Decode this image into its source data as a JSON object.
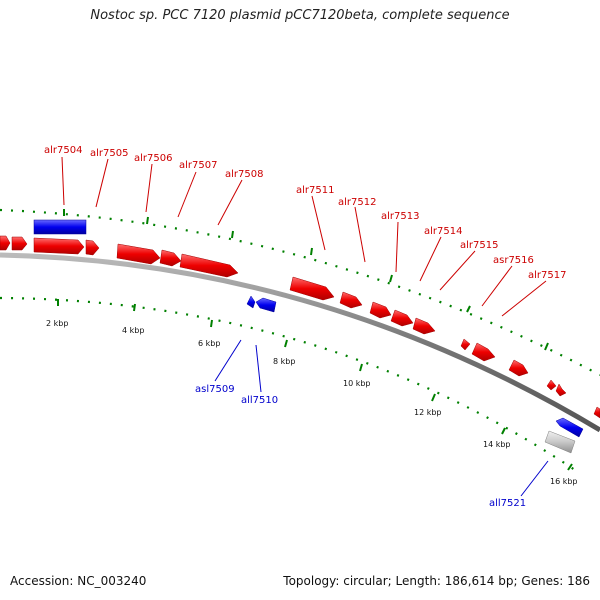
{
  "title": "Nostoc sp. PCC 7120 plasmid pCC7120beta, complete sequence",
  "accession": "Accession: NC_003240",
  "summary": "Topology: circular; Length: 186,614 bp; Genes: 186",
  "colors": {
    "forward_gene": "#ff0000",
    "reverse_gene": "#0000ff",
    "other_gene": "#c0c0c0",
    "backbone": "#888888",
    "ticks": "#008000"
  },
  "gene_labels": {
    "alr7504": "alr7504",
    "alr7505": "alr7505",
    "alr7506": "alr7506",
    "alr7507": "alr7507",
    "alr7508": "alr7508",
    "alr7511": "alr7511",
    "alr7512": "alr7512",
    "alr7513": "alr7513",
    "alr7514": "alr7514",
    "alr7515": "alr7515",
    "asr7516": "asr7516",
    "alr7517": "alr7517",
    "asl7509": "asl7509",
    "all7510": "all7510",
    "all7521": "all7521"
  },
  "scale_labels": {
    "k2": "2 kbp",
    "k4": "4 kbp",
    "k6": "6 kbp",
    "k8": "8 kbp",
    "k10": "10 kbp",
    "k12": "12 kbp",
    "k14": "14 kbp",
    "k16": "16 kbp"
  }
}
